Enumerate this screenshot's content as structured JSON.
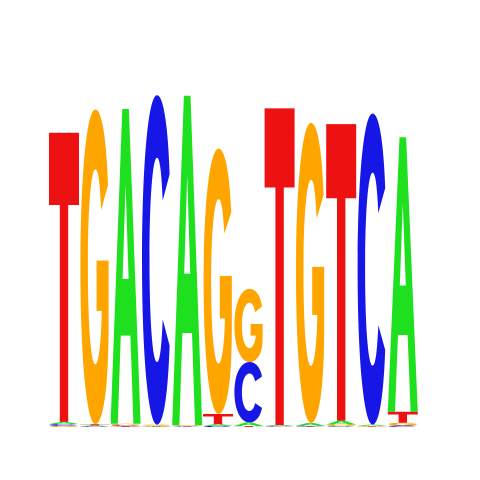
{
  "chart_data": {
    "type": "sequence-logo",
    "title": "",
    "xlabel": "",
    "ylabel": "",
    "alphabet": [
      "A",
      "C",
      "G",
      "T"
    ],
    "colors": {
      "A": "#1fe01f",
      "C": "#1616e6",
      "G": "#ffa500",
      "T": "#ee1111"
    },
    "ylim": [
      0,
      2
    ],
    "positions": [
      {
        "index": 1,
        "letters": [
          {
            "base": "T",
            "bits": 1.58
          },
          {
            "base": "A",
            "bits": 0.012
          },
          {
            "base": "C",
            "bits": 0.01
          },
          {
            "base": "G",
            "bits": 0.006
          }
        ]
      },
      {
        "index": 2,
        "letters": [
          {
            "base": "G",
            "bits": 1.72
          },
          {
            "base": "T",
            "bits": 0.006
          },
          {
            "base": "A",
            "bits": 0.005
          },
          {
            "base": "C",
            "bits": 0.004
          }
        ]
      },
      {
        "index": 3,
        "letters": [
          {
            "base": "A",
            "bits": 1.72
          },
          {
            "base": "G",
            "bits": 0.01
          },
          {
            "base": "T",
            "bits": 0.004
          },
          {
            "base": "C",
            "bits": 0.004
          }
        ]
      },
      {
        "index": 4,
        "letters": [
          {
            "base": "C",
            "bits": 1.8
          },
          {
            "base": "G",
            "bits": 0.006
          },
          {
            "base": "A",
            "bits": 0.004
          },
          {
            "base": "T",
            "bits": 0.003
          }
        ]
      },
      {
        "index": 5,
        "letters": [
          {
            "base": "A",
            "bits": 1.8
          },
          {
            "base": "G",
            "bits": 0.004
          },
          {
            "base": "C",
            "bits": 0.003
          },
          {
            "base": "T",
            "bits": 0.003
          }
        ]
      },
      {
        "index": 6,
        "letters": [
          {
            "base": "G",
            "bits": 1.45
          },
          {
            "base": "T",
            "bits": 0.055
          },
          {
            "base": "A",
            "bits": 0.01
          },
          {
            "base": "C",
            "bits": 0.006
          }
        ]
      },
      {
        "index": 7,
        "letters": [
          {
            "base": "G",
            "bits": 0.4
          },
          {
            "base": "C",
            "bits": 0.33
          },
          {
            "base": "A",
            "bits": 0.02
          },
          {
            "base": "T",
            "bits": 0.005
          }
        ]
      },
      {
        "index": 8,
        "letters": [
          {
            "base": "T",
            "bits": 1.73
          },
          {
            "base": "C",
            "bits": 0.004
          },
          {
            "base": "A",
            "bits": 0.004
          },
          {
            "base": "G",
            "bits": 0.003
          }
        ]
      },
      {
        "index": 9,
        "letters": [
          {
            "base": "G",
            "bits": 1.64
          },
          {
            "base": "A",
            "bits": 0.015
          },
          {
            "base": "C",
            "bits": 0.004
          },
          {
            "base": "T",
            "bits": 0.003
          }
        ]
      },
      {
        "index": 10,
        "letters": [
          {
            "base": "T",
            "bits": 1.62
          },
          {
            "base": "A",
            "bits": 0.022
          },
          {
            "base": "G",
            "bits": 0.008
          },
          {
            "base": "C",
            "bits": 0.005
          }
        ]
      },
      {
        "index": 11,
        "letters": [
          {
            "base": "C",
            "bits": 1.7
          },
          {
            "base": "A",
            "bits": 0.006
          },
          {
            "base": "G",
            "bits": 0.004
          },
          {
            "base": "T",
            "bits": 0.003
          }
        ]
      },
      {
        "index": 12,
        "letters": [
          {
            "base": "A",
            "bits": 1.5
          },
          {
            "base": "T",
            "bits": 0.06
          },
          {
            "base": "G",
            "bits": 0.015
          },
          {
            "base": "C",
            "bits": 0.008
          }
        ]
      }
    ]
  }
}
